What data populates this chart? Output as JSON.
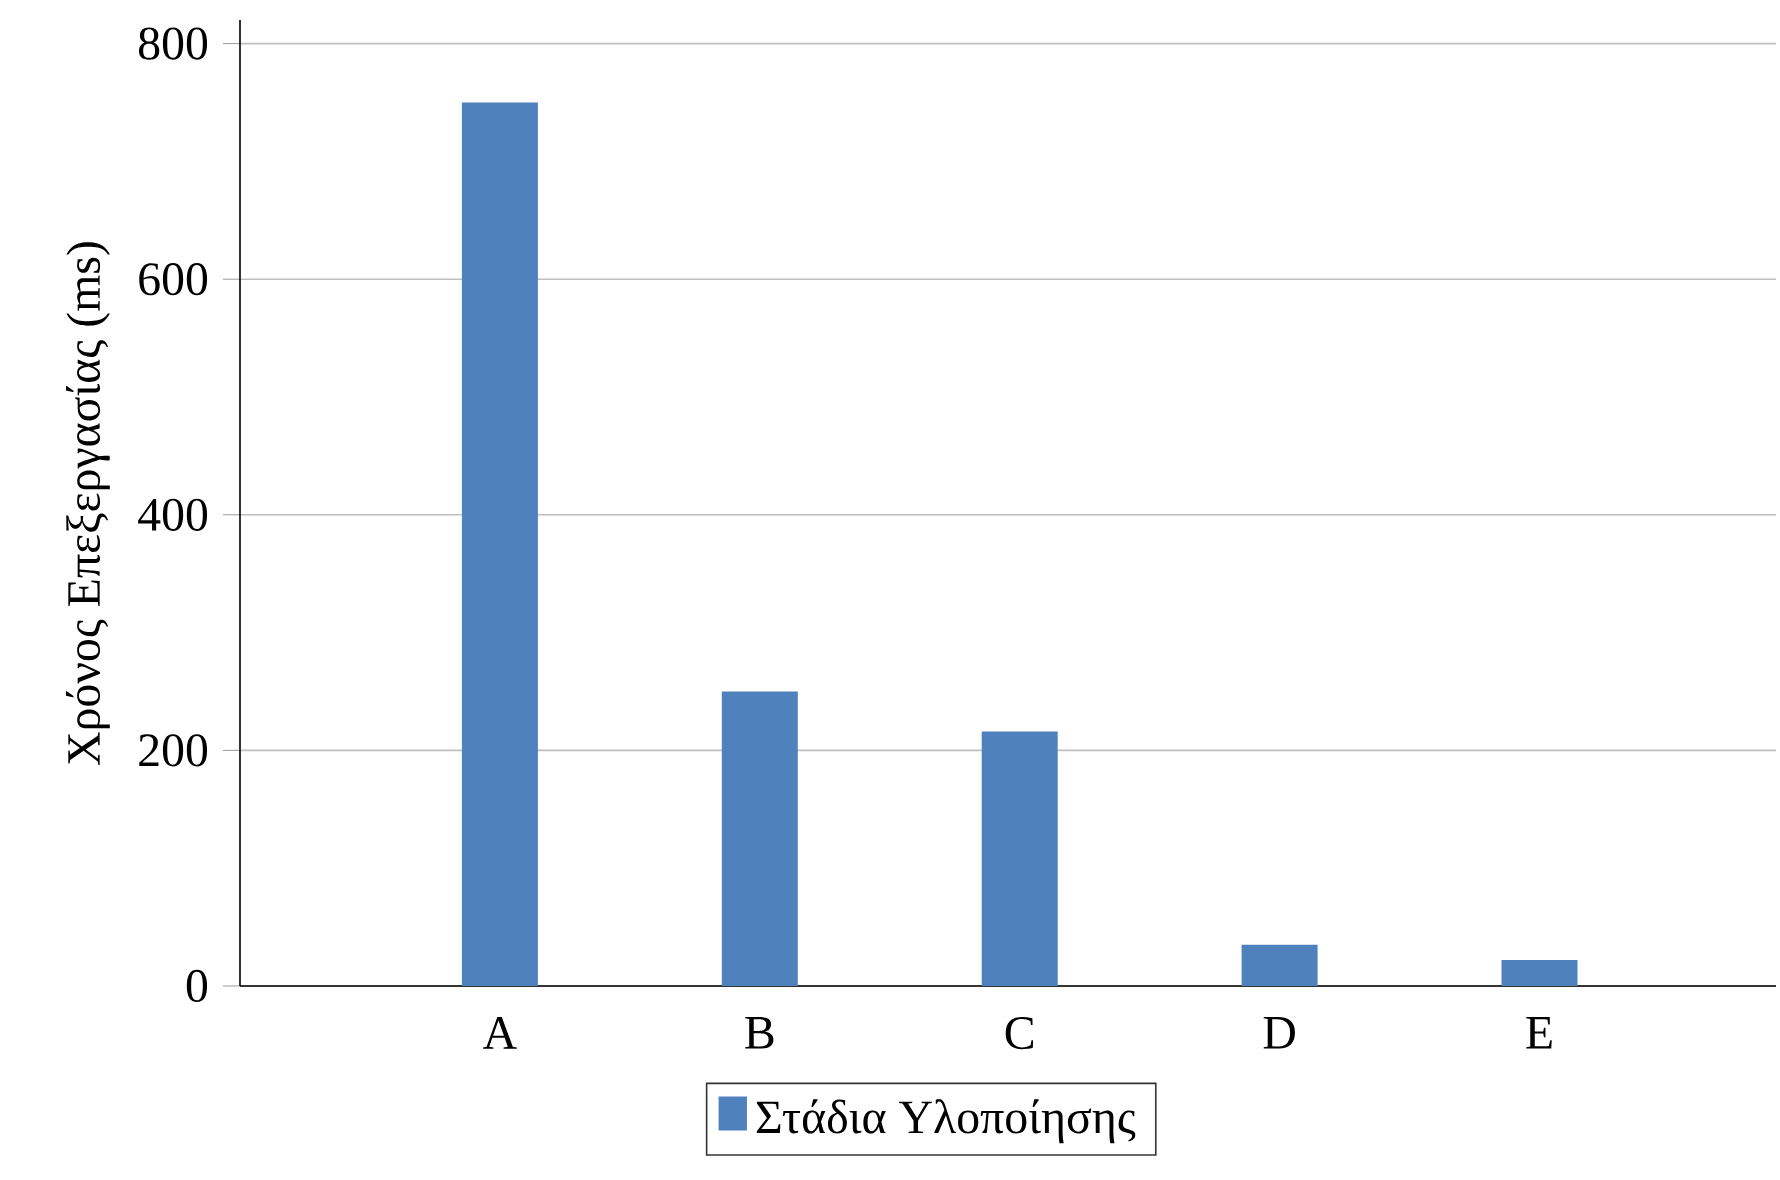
{
  "chart_data": {
    "type": "bar",
    "ylabel": "Χρόνος Επεξεργασίας (ms)",
    "categories": [
      "A",
      "B",
      "C",
      "D",
      "E"
    ],
    "series": [
      {
        "name": "Στάδια Υλοποίησης",
        "color": "#4f81bd",
        "values": [
          750,
          250,
          216,
          35,
          22
        ]
      }
    ],
    "ylim": [
      0,
      820
    ],
    "yticks": [
      0,
      200,
      400,
      600,
      800
    ],
    "grid": "y",
    "legend": "bottom"
  }
}
